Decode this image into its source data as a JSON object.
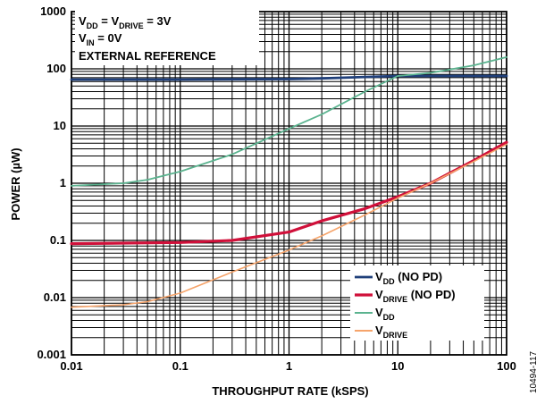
{
  "chart_data": {
    "type": "line",
    "xlabel": "THROUGHPUT RATE (kSPS)",
    "ylabel": "POWER (µW)",
    "x_scale": "log",
    "y_scale": "log",
    "xlim": [
      0.01,
      100
    ],
    "ylim": [
      0.001,
      1000
    ],
    "grid": true,
    "legend_position": "bottom-right",
    "x_ticks": [
      "0.01",
      "0.1",
      "1",
      "10",
      "100"
    ],
    "y_ticks": [
      "0.001",
      "0.01",
      "0.1",
      "1",
      "10",
      "100",
      "1000"
    ],
    "annotations": {
      "line1": {
        "a": "V",
        "a_sub": "DD",
        "b": " = V",
        "b_sub": "DRIVE",
        "c": " = 3V"
      },
      "line2": {
        "a": "V",
        "a_sub": "IN",
        "b": " = 0V"
      },
      "line3": "EXTERNAL REFERENCE"
    },
    "figure_id": "10494-117",
    "series": [
      {
        "name": "VDD (NO PD)",
        "legend": {
          "main": "V",
          "sub": "DD",
          "suffix": " (NO PD)"
        },
        "color": "#1f3f7a",
        "width": 2.8,
        "x": [
          0.01,
          0.1,
          1,
          2,
          5,
          10,
          100
        ],
        "y": [
          65,
          65,
          66,
          68,
          72,
          75,
          75
        ]
      },
      {
        "name": "VDRIVE (NO PD)",
        "legend": {
          "main": "V",
          "sub": "DRIVE",
          "suffix": " (NO PD)"
        },
        "color": "#d0103a",
        "width": 3.2,
        "x": [
          0.01,
          0.1,
          0.3,
          1,
          2,
          5,
          10,
          20,
          50,
          100
        ],
        "y": [
          0.088,
          0.092,
          0.1,
          0.14,
          0.22,
          0.36,
          0.58,
          1.0,
          2.5,
          5.2
        ]
      },
      {
        "name": "VDD",
        "legend": {
          "main": "V",
          "sub": "DD",
          "suffix": ""
        },
        "color": "#5bb38f",
        "width": 1.8,
        "x": [
          0.01,
          0.03,
          0.05,
          0.1,
          0.3,
          1,
          2,
          5,
          10,
          20,
          50,
          100
        ],
        "y": [
          0.9,
          1.0,
          1.15,
          1.6,
          3.2,
          9.0,
          16,
          40,
          75,
          85,
          115,
          160
        ]
      },
      {
        "name": "VDRIVE",
        "legend": {
          "main": "V",
          "sub": "DRIVE",
          "suffix": ""
        },
        "color": "#f6a46b",
        "width": 1.6,
        "x": [
          0.01,
          0.03,
          0.05,
          0.1,
          0.3,
          1,
          2,
          5,
          10,
          20,
          50,
          100
        ],
        "y": [
          0.0068,
          0.0075,
          0.0085,
          0.012,
          0.028,
          0.068,
          0.12,
          0.28,
          0.55,
          1.0,
          2.4,
          4.8
        ]
      }
    ]
  }
}
